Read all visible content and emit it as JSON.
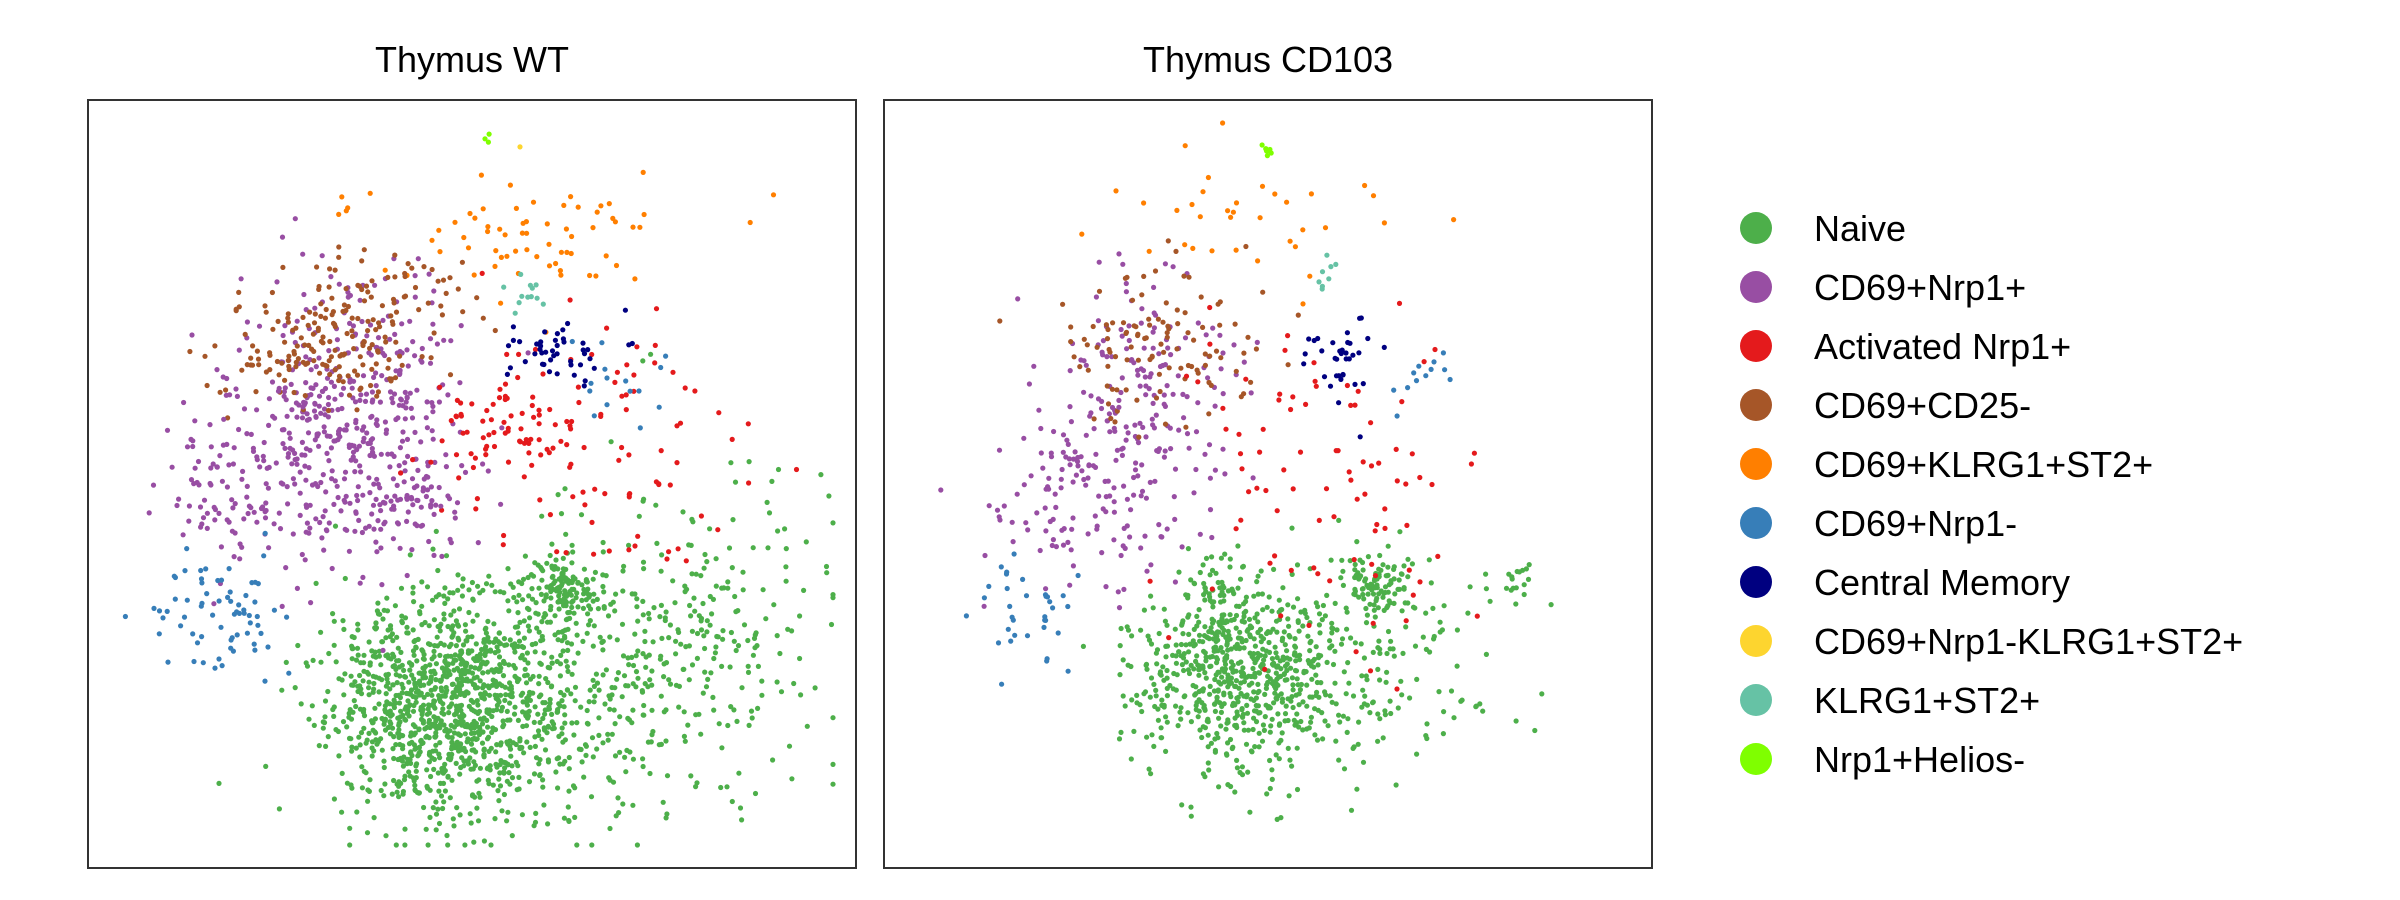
{
  "chart_data": {
    "type": "scatter",
    "legend": {
      "position": "right",
      "entries": [
        {
          "name": "Naive",
          "color": "#4DAF4A"
        },
        {
          "name": "CD69+Nrp1+",
          "color": "#984EA3"
        },
        {
          "name": "Activated Nrp1+",
          "color": "#E41A1C"
        },
        {
          "name": "CD69+CD25-",
          "color": "#A65628"
        },
        {
          "name": "CD69+KLRG1+ST2+",
          "color": "#FF7F00"
        },
        {
          "name": "CD69+Nrp1-",
          "color": "#377EB8"
        },
        {
          "name": "Central Memory",
          "color": "#000080"
        },
        {
          "name": "CD69+Nrp1-KLRG1+ST2+",
          "color": "#FDD52F"
        },
        {
          "name": "KLRG1+ST2+",
          "color": "#66C2A5"
        },
        {
          "name": "Nrp1+Helios-",
          "color": "#7FFF00"
        }
      ]
    },
    "grid": false,
    "axes_visible": false,
    "panels": [
      {
        "title": "Thymus WT",
        "clusters": [
          {
            "cat": 0,
            "cx": 0.47,
            "cy": 0.78,
            "sx": 0.075,
            "sy": 0.075,
            "n": 1150
          },
          {
            "cat": 0,
            "cx": 0.76,
            "cy": 0.7,
            "sx": 0.1,
            "sy": 0.09,
            "n": 300
          },
          {
            "cat": 0,
            "cx": 0.62,
            "cy": 0.82,
            "sx": 0.12,
            "sy": 0.07,
            "n": 200
          },
          {
            "cat": 0,
            "cx": 0.62,
            "cy": 0.64,
            "sx": 0.025,
            "sy": 0.02,
            "n": 130
          },
          {
            "cat": 1,
            "cx": 0.34,
            "cy": 0.42,
            "sx": 0.07,
            "sy": 0.1,
            "n": 420
          },
          {
            "cat": 1,
            "cx": 0.21,
            "cy": 0.5,
            "sx": 0.06,
            "sy": 0.06,
            "n": 120
          },
          {
            "cat": 1,
            "cx": 0.42,
            "cy": 0.53,
            "sx": 0.03,
            "sy": 0.025,
            "n": 60
          },
          {
            "cat": 2,
            "cx": 0.53,
            "cy": 0.43,
            "sx": 0.04,
            "sy": 0.04,
            "n": 60
          },
          {
            "cat": 2,
            "cx": 0.66,
            "cy": 0.45,
            "sx": 0.09,
            "sy": 0.09,
            "n": 90
          },
          {
            "cat": 3,
            "cx": 0.31,
            "cy": 0.32,
            "sx": 0.07,
            "sy": 0.04,
            "n": 160
          },
          {
            "cat": 3,
            "cx": 0.4,
            "cy": 0.25,
            "sx": 0.06,
            "sy": 0.03,
            "n": 50
          },
          {
            "cat": 4,
            "cx": 0.56,
            "cy": 0.17,
            "sx": 0.12,
            "sy": 0.035,
            "n": 70
          },
          {
            "cat": 5,
            "cx": 0.17,
            "cy": 0.67,
            "sx": 0.05,
            "sy": 0.04,
            "n": 70
          },
          {
            "cat": 5,
            "cx": 0.69,
            "cy": 0.36,
            "sx": 0.03,
            "sy": 0.03,
            "n": 15
          },
          {
            "cat": 6,
            "cx": 0.61,
            "cy": 0.33,
            "sx": 0.035,
            "sy": 0.03,
            "n": 45
          },
          {
            "cat": 7,
            "cx": 0.56,
            "cy": 0.055,
            "sx": 0.005,
            "sy": 0.005,
            "n": 1
          },
          {
            "cat": 8,
            "cx": 0.57,
            "cy": 0.25,
            "sx": 0.012,
            "sy": 0.015,
            "n": 12
          },
          {
            "cat": 9,
            "cx": 0.52,
            "cy": 0.05,
            "sx": 0.004,
            "sy": 0.004,
            "n": 3
          }
        ]
      },
      {
        "title": "Thymus CD103",
        "clusters": [
          {
            "cat": 0,
            "cx": 0.46,
            "cy": 0.74,
            "sx": 0.065,
            "sy": 0.065,
            "n": 700
          },
          {
            "cat": 0,
            "cx": 0.64,
            "cy": 0.63,
            "sx": 0.025,
            "sy": 0.02,
            "n": 90
          },
          {
            "cat": 0,
            "cx": 0.62,
            "cy": 0.74,
            "sx": 0.1,
            "sy": 0.08,
            "n": 180
          },
          {
            "cat": 0,
            "cx": 0.82,
            "cy": 0.63,
            "sx": 0.015,
            "sy": 0.012,
            "n": 15
          },
          {
            "cat": 1,
            "cx": 0.34,
            "cy": 0.42,
            "sx": 0.06,
            "sy": 0.1,
            "n": 220
          },
          {
            "cat": 1,
            "cx": 0.22,
            "cy": 0.51,
            "sx": 0.05,
            "sy": 0.05,
            "n": 70
          },
          {
            "cat": 2,
            "cx": 0.57,
            "cy": 0.5,
            "sx": 0.09,
            "sy": 0.12,
            "n": 90
          },
          {
            "cat": 3,
            "cx": 0.36,
            "cy": 0.32,
            "sx": 0.07,
            "sy": 0.05,
            "n": 110
          },
          {
            "cat": 4,
            "cx": 0.48,
            "cy": 0.17,
            "sx": 0.1,
            "sy": 0.04,
            "n": 35
          },
          {
            "cat": 5,
            "cx": 0.19,
            "cy": 0.67,
            "sx": 0.04,
            "sy": 0.04,
            "n": 35
          },
          {
            "cat": 5,
            "cx": 0.69,
            "cy": 0.35,
            "sx": 0.025,
            "sy": 0.03,
            "n": 12
          },
          {
            "cat": 6,
            "cx": 0.6,
            "cy": 0.33,
            "sx": 0.025,
            "sy": 0.03,
            "n": 35
          },
          {
            "cat": 8,
            "cx": 0.58,
            "cy": 0.24,
            "sx": 0.012,
            "sy": 0.015,
            "n": 8
          },
          {
            "cat": 9,
            "cx": 0.5,
            "cy": 0.065,
            "sx": 0.006,
            "sy": 0.01,
            "n": 8
          }
        ]
      }
    ]
  }
}
